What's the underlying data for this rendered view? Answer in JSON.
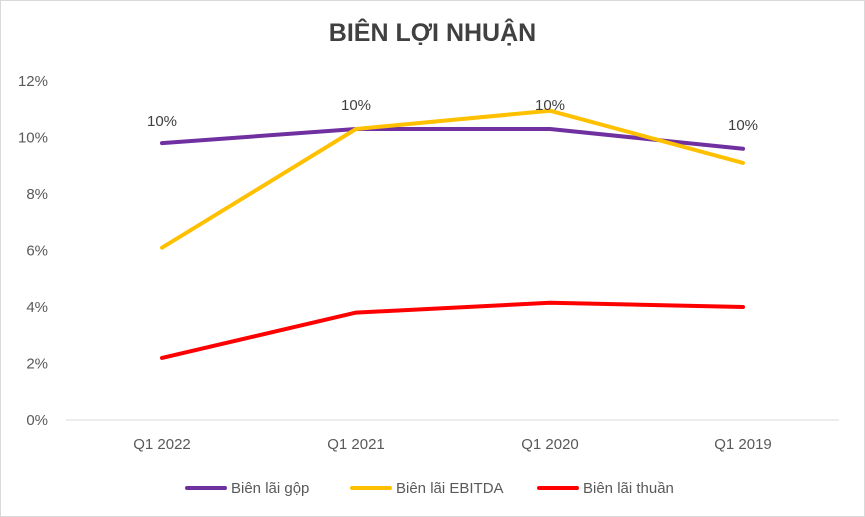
{
  "chart_data": {
    "type": "line",
    "title": "BIÊN LỢI NHUẬN",
    "categories": [
      "Q1 2022",
      "Q1 2021",
      "Q1 2020",
      "Q1 2019"
    ],
    "ylim": [
      0,
      12
    ],
    "yticks": [
      0,
      2,
      4,
      6,
      8,
      10,
      12
    ],
    "ytick_labels": [
      "0%",
      "2%",
      "4%",
      "6%",
      "8%",
      "10%",
      "12%"
    ],
    "grid": false,
    "legend_position": "bottom",
    "series": [
      {
        "name": "Biên lãi gộp",
        "color": "#7030a0",
        "values": [
          9.8,
          10.3,
          10.3,
          9.6
        ],
        "data_labels": [
          "10%",
          "10%",
          "10%",
          "10%"
        ]
      },
      {
        "name": "Biên lãi EBITDA",
        "color": "#ffc000",
        "values": [
          6.1,
          10.3,
          10.95,
          9.1
        ]
      },
      {
        "name": "Biên lãi thuần",
        "color": "#ff0000",
        "values": [
          2.2,
          3.8,
          4.15,
          4.0
        ]
      }
    ]
  }
}
